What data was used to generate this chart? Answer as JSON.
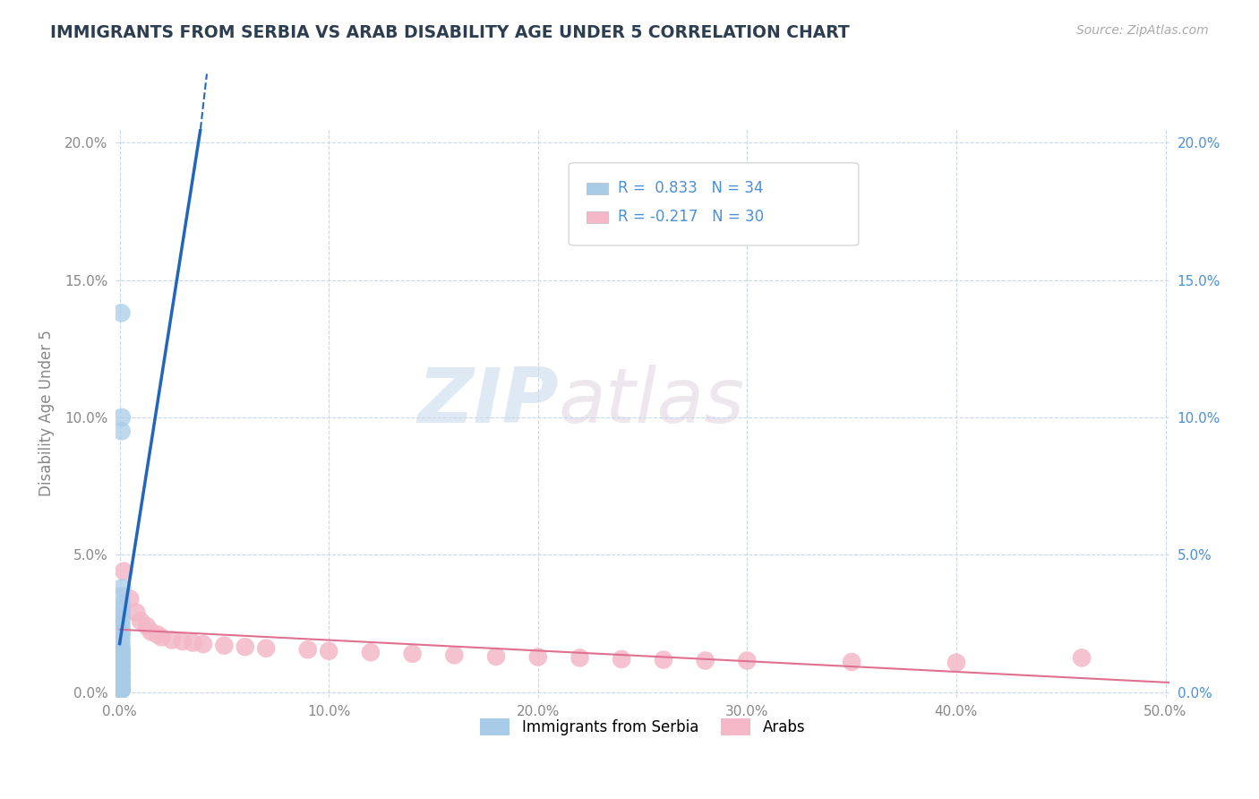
{
  "title": "IMMIGRANTS FROM SERBIA VS ARAB DISABILITY AGE UNDER 5 CORRELATION CHART",
  "source": "Source: ZipAtlas.com",
  "ylabel": "Disability Age Under 5",
  "xlim": [
    -0.002,
    0.502
  ],
  "ylim": [
    -0.002,
    0.205
  ],
  "xticks": [
    0.0,
    0.1,
    0.2,
    0.3,
    0.4,
    0.5
  ],
  "yticks": [
    0.0,
    0.05,
    0.1,
    0.15,
    0.2
  ],
  "xticklabels": [
    "0.0%",
    "10.0%",
    "20.0%",
    "30.0%",
    "40.0%",
    "50.0%"
  ],
  "yticklabels": [
    "0.0%",
    "5.0%",
    "10.0%",
    "15.0%",
    "20.0%"
  ],
  "watermark_zip": "ZIP",
  "watermark_atlas": "atlas",
  "legend_labels": [
    "Immigrants from Serbia",
    "Arabs"
  ],
  "serbia_R": 0.833,
  "serbia_N": 34,
  "arab_R": -0.217,
  "arab_N": 30,
  "serbia_color": "#a8cce8",
  "arab_color": "#f4b8c8",
  "serbia_line_color": "#2266bb",
  "arab_line_color": "#e07090",
  "serbia_scatter": [
    [
      0.0008,
      0.138
    ],
    [
      0.001,
      0.1
    ],
    [
      0.0009,
      0.095
    ],
    [
      0.0012,
      0.038
    ],
    [
      0.0008,
      0.035
    ],
    [
      0.001,
      0.032
    ],
    [
      0.0008,
      0.03
    ],
    [
      0.001,
      0.028
    ],
    [
      0.0009,
      0.026
    ],
    [
      0.0008,
      0.024
    ],
    [
      0.0011,
      0.022
    ],
    [
      0.0009,
      0.02
    ],
    [
      0.0008,
      0.018
    ],
    [
      0.001,
      0.016
    ],
    [
      0.0009,
      0.015
    ],
    [
      0.0008,
      0.014
    ],
    [
      0.001,
      0.013
    ],
    [
      0.0009,
      0.012
    ],
    [
      0.0008,
      0.011
    ],
    [
      0.001,
      0.01
    ],
    [
      0.0009,
      0.009
    ],
    [
      0.0008,
      0.008
    ],
    [
      0.001,
      0.007
    ],
    [
      0.0009,
      0.006
    ],
    [
      0.0008,
      0.005
    ],
    [
      0.001,
      0.004
    ],
    [
      0.0009,
      0.004
    ],
    [
      0.0008,
      0.003
    ],
    [
      0.001,
      0.002
    ],
    [
      0.0008,
      0.001
    ],
    [
      0.0009,
      0.001
    ],
    [
      0.001,
      0.001
    ],
    [
      0.0009,
      0.001
    ],
    [
      0.0008,
      0.001
    ]
  ],
  "arab_scatter": [
    [
      0.002,
      0.044
    ],
    [
      0.005,
      0.034
    ],
    [
      0.008,
      0.029
    ],
    [
      0.01,
      0.026
    ],
    [
      0.013,
      0.024
    ],
    [
      0.015,
      0.022
    ],
    [
      0.018,
      0.021
    ],
    [
      0.02,
      0.02
    ],
    [
      0.025,
      0.019
    ],
    [
      0.03,
      0.0185
    ],
    [
      0.035,
      0.018
    ],
    [
      0.04,
      0.0175
    ],
    [
      0.05,
      0.017
    ],
    [
      0.06,
      0.0165
    ],
    [
      0.07,
      0.016
    ],
    [
      0.09,
      0.0155
    ],
    [
      0.1,
      0.015
    ],
    [
      0.12,
      0.0145
    ],
    [
      0.14,
      0.014
    ],
    [
      0.16,
      0.0135
    ],
    [
      0.18,
      0.013
    ],
    [
      0.2,
      0.0128
    ],
    [
      0.22,
      0.0125
    ],
    [
      0.24,
      0.012
    ],
    [
      0.26,
      0.0118
    ],
    [
      0.28,
      0.0115
    ],
    [
      0.3,
      0.0115
    ],
    [
      0.35,
      0.011
    ],
    [
      0.4,
      0.0108
    ],
    [
      0.46,
      0.0125
    ]
  ],
  "background_color": "#ffffff",
  "grid_color": "#c8d8e8",
  "title_color": "#2c3e50",
  "axis_color": "#888888",
  "right_tick_color": "#4a90d9"
}
